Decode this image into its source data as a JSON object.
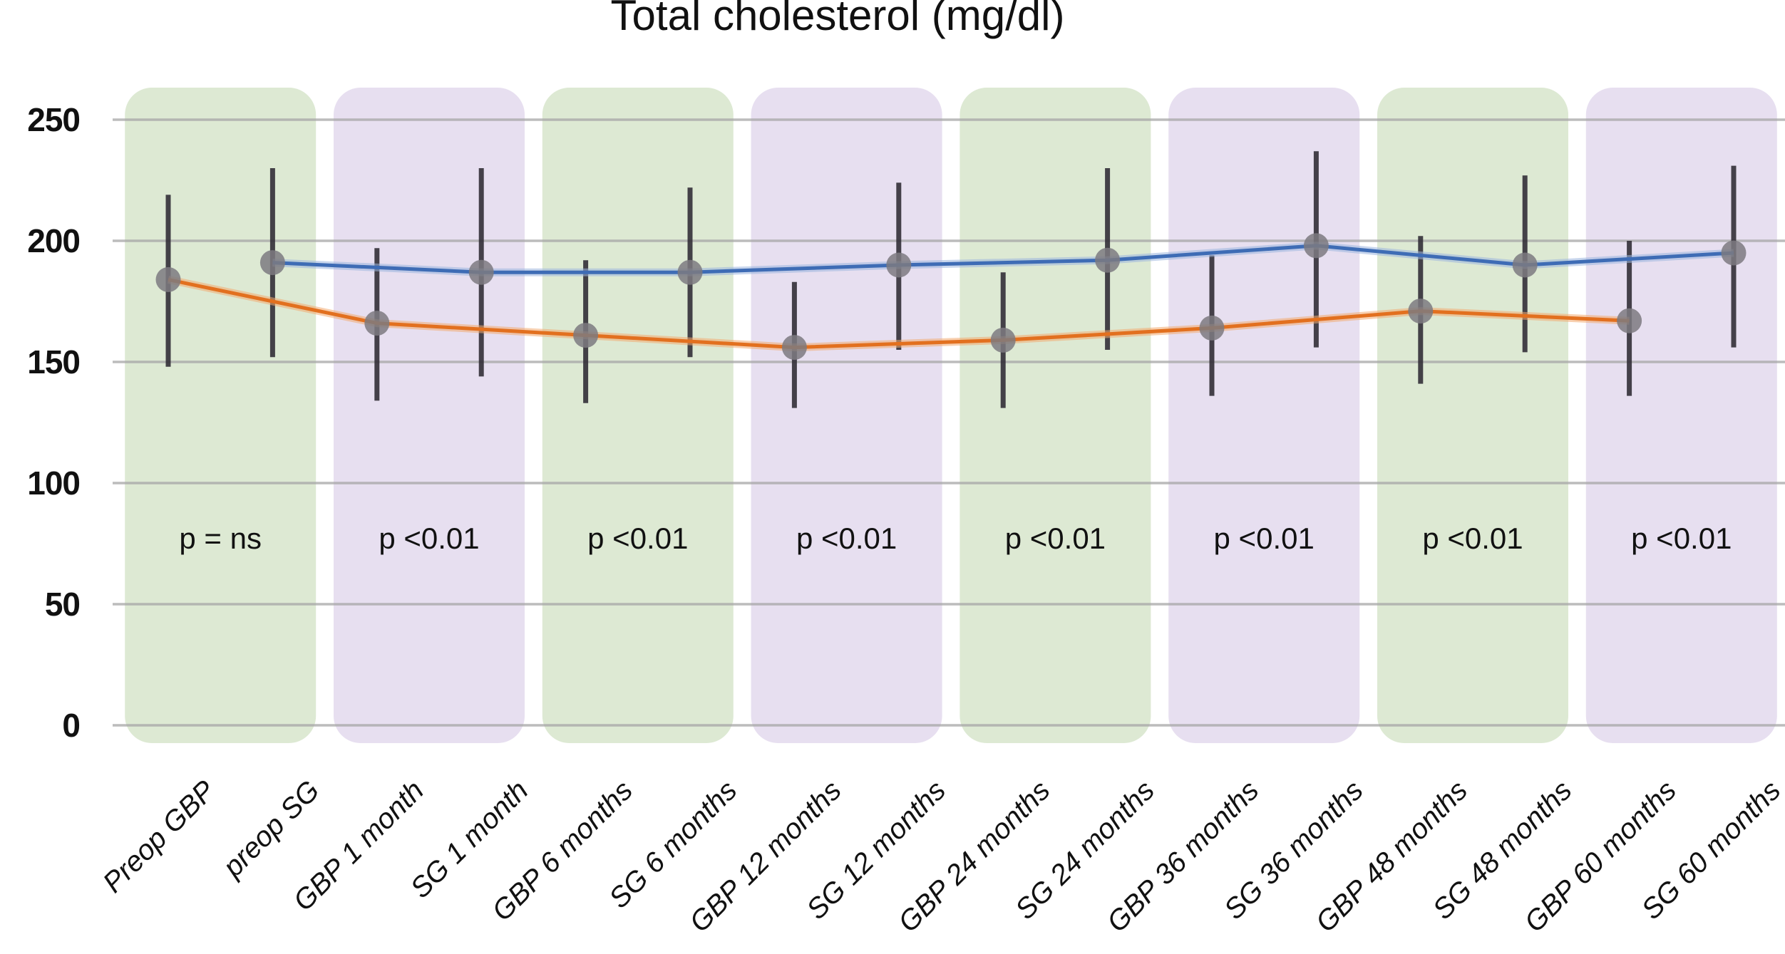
{
  "chart_data": {
    "type": "line",
    "title": "Total cholesterol (mg/dl)",
    "grid": true,
    "legend": "none",
    "y_axis": {
      "min": 0,
      "max": 250,
      "tick_interval": 50,
      "ticks": [
        250,
        200,
        150,
        100,
        50,
        0
      ]
    },
    "x_labels": [
      "Preop GBP",
      "preop SG",
      "GBP 1 month",
      "SG 1 month",
      "GBP 6 months",
      "SG 6 months",
      "GBP 12 months",
      "SG 12 months",
      "GBP 24 months",
      "SG 24 months",
      "GBP 36 months",
      "SG 36 months",
      "GBP 48 months",
      "SG 48 months",
      "GBP 60 months",
      "SG 60 months"
    ],
    "series": [
      {
        "name": "GBP",
        "color": "#e2701f",
        "fringe_color": "#f3a96f",
        "x_slots": [
          0,
          2,
          4,
          6,
          8,
          10,
          12,
          14
        ],
        "values": [
          184,
          166,
          161,
          156,
          159,
          164,
          171,
          167
        ],
        "ci_low": [
          148,
          134,
          133,
          131,
          131,
          136,
          141,
          136
        ],
        "ci_high": [
          219,
          197,
          192,
          183,
          187,
          194,
          202,
          200
        ]
      },
      {
        "name": "SG",
        "color": "#3e6cb5",
        "fringe_color": "#9ab4de",
        "x_slots": [
          1,
          3,
          5,
          7,
          9,
          11,
          13,
          15
        ],
        "values": [
          191,
          187,
          187,
          190,
          192,
          198,
          190,
          195
        ],
        "ci_low": [
          152,
          144,
          152,
          155,
          155,
          156,
          154,
          156
        ],
        "ci_high": [
          230,
          230,
          222,
          224,
          230,
          237,
          227,
          231
        ]
      }
    ],
    "bands": [
      {
        "p_label": "p = ns",
        "shade": "green"
      },
      {
        "p_label": "p <0.01",
        "shade": "purple"
      },
      {
        "p_label": "p <0.01",
        "shade": "green"
      },
      {
        "p_label": "p <0.01",
        "shade": "purple"
      },
      {
        "p_label": "p <0.01",
        "shade": "green"
      },
      {
        "p_label": "p <0.01",
        "shade": "purple"
      },
      {
        "p_label": "p <0.01",
        "shade": "green"
      },
      {
        "p_label": "p <0.01",
        "shade": "purple"
      }
    ],
    "colors": {
      "band_green": "#dde9d3",
      "band_purple": "#e7dff0",
      "gridline": "#a6a6a6",
      "error_bar": "#332f38",
      "marker": "#7d7a80",
      "text": "#111111"
    },
    "marker_shape": "circle"
  }
}
